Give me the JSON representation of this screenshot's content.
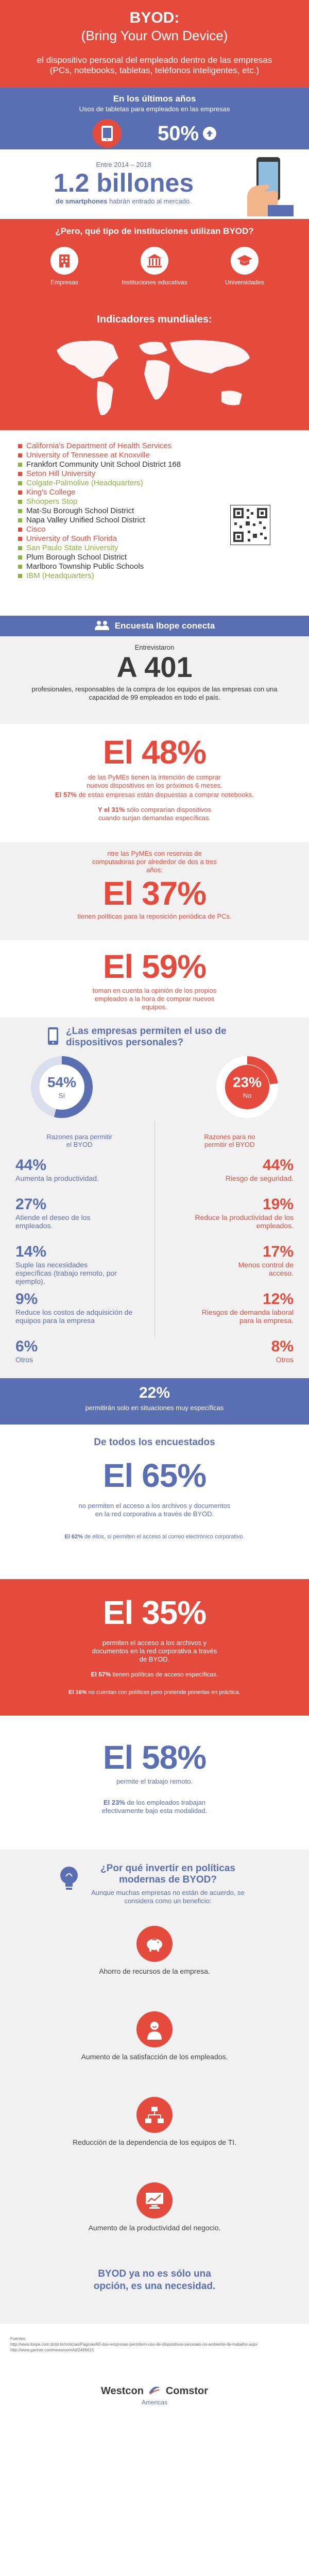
{
  "header": {
    "title": "BYOD:",
    "subtitle": "(Bring Your Own Device)",
    "definition": "el dispositivo personal del empleado dentro de las empresas (PCs, notebooks, tabletas, teléfonos inteligentes, etc.)"
  },
  "tablets": {
    "heading": "En los últimos años",
    "sub": "Usos de tabletas para empleados en las empresas",
    "value": "50%",
    "fill_percent": 50
  },
  "smartphones": {
    "range": "Entre 2014 – 2018",
    "value": "1.2 billones",
    "sub_bold": "de smartphones",
    "sub_rest": " habrán entrado al mercado."
  },
  "institutions": {
    "question": "¿Pero, qué tipo de instituciones utilizan BYOD?",
    "items": [
      "Empresas",
      "Instituciones educativas",
      "Universidades"
    ],
    "indicators_title": "Indicadores mundiales:"
  },
  "orgs": [
    "California's Department of Health Services",
    "University of Tennessee at Knoxville",
    "Frankfort Community Unit School District 168",
    "Seton Hill University",
    "Colgate-Palmolive (Headquarters)",
    "King's College",
    "Shoopers Stop",
    "Mat-Su Borough School District",
    "Napa Valley Unified School District",
    "Cisco",
    "University of South Florida",
    "San Paulo State University",
    "Plum Borough School District",
    "Marlboro Township Public Schools",
    "IBM (Headquarters)"
  ],
  "survey": {
    "title": "Encuesta Ibope conecta",
    "interviewed": "Entrevistaron",
    "value": "A 401",
    "desc": "profesionales, responsables de la compra de los equipos de las empresas con una capacidad de 99 empleados en todo el país."
  },
  "stat48": {
    "value": "El 48%",
    "line1": "de las PyMEs tienen la intención de comprar nuevos dispositivos en los próximos 6 meses.",
    "line2_bold": "El 57%",
    "line2_rest": " de estas empresas están dispuestas a comprar notebooks.",
    "line3_bold": "Y el 31%",
    "line3_rest": " sólo comprarían dispositivos cuando surjan demandas específicas."
  },
  "stat37": {
    "pre": "ntre las PyMEs con reservas de computadoras por alrededor de dos a tres años:",
    "value": "El 37%",
    "post": "tienen políticas para la reposición periódica de PCs."
  },
  "stat59": {
    "value": "El 59%",
    "desc": "toman en cuenta la opinión de los propios empleados a la hora de comprar nuevos equipos."
  },
  "permit": {
    "question": "¿Las empresas permiten el uso de dispositivos personales?",
    "yes_value": "54%",
    "yes_label": "Sí",
    "yes_fraction": 0.54,
    "no_value": "23%",
    "no_label": "No",
    "no_fraction": 0.23,
    "yes_reasons_title": "Razones para permitir el BYOD",
    "no_reasons_title": "Razones para no permitir el BYOD",
    "reasons": [
      {
        "yes_pct": "44%",
        "yes_txt": "Aumenta la productividad.",
        "no_pct": "44%",
        "no_txt": "Riesgo de seguridad."
      },
      {
        "yes_pct": "27%",
        "yes_txt": "Atiende el deseo de los empleados.",
        "no_pct": "19%",
        "no_txt": "Reduce la productividad de los empleados."
      },
      {
        "yes_pct": "14%",
        "yes_txt": "Suple las necesidades específicas (trabajo remoto, por ejemplo).",
        "no_pct": "17%",
        "no_txt": "Menos control de acceso."
      },
      {
        "yes_pct": "9%",
        "yes_txt": "Reduce los costos de adquisición de equipos para la empresa",
        "no_pct": "12%",
        "no_txt": "Riesgos de demanda laboral para la empresa."
      },
      {
        "yes_pct": "6%",
        "yes_txt": "Otros",
        "no_pct": "8%",
        "no_txt": "Otros"
      }
    ],
    "specific_value": "22%",
    "specific_desc": "permitirán solo en situaciones muy específicas"
  },
  "allsurveyed": {
    "title": "De todos los encuestados",
    "value": "El 65%",
    "desc": "no permiten el acceso a los archivos y documentos en la red corporativa a través de BYOD.",
    "note_bold": "El 62%",
    "note_rest": " de ellos, sí permiten el acceso al correo electrónico corporativo."
  },
  "stat35": {
    "value": "El 35%",
    "desc": "permiten el acceso a los archivos y documentos en la red corporativa a través de BYOD.",
    "note1_bold": "El 57%",
    "note1_rest": " tienen políticas de acceso específicas.",
    "note2_bold": "El 16%",
    "note2_rest": " no cuentan con políticas pero pretende ponerlas en práctica."
  },
  "stat58": {
    "value": "El 58%",
    "desc": "permite el trabajo remoto.",
    "note_bold": "El 23%",
    "note_rest": " de los empleados trabajan efectivamente bajo esta modalidad."
  },
  "why": {
    "question": "¿Por qué invertir en políticas modernas de BYOD?",
    "sub": "Aunque muchas empresas no están de acuerdo, se considera como un beneficio:",
    "items": [
      "Ahorro de recursos de la empresa.",
      "Aumento de la satisfacción de los empleados.",
      "Reducción de la dependencia de los equipos de TI.",
      "Aumento de la productividad del negocio."
    ],
    "closing": "BYOD ya no es sólo una opción, es una necesidad."
  },
  "footer": {
    "sources_label": "Fuentes:",
    "sources": [
      "http://www.ibope.com.br/pt-br/noticias/Paginas/60-das-empresas-permitem-uso-de-dispositivos-pessoais-no-ambiente-de-trabalho.aspx",
      "http://www.gartner.com/newsroom/id/2466615"
    ],
    "brand_line1": "Westcon",
    "brand_line2": "Comstor",
    "brand_line3": "Americas"
  },
  "colors": {
    "red": "#e54b3c",
    "blue": "#5a6fb2",
    "green": "#8bb33f",
    "dark": "#3a3a3a"
  }
}
